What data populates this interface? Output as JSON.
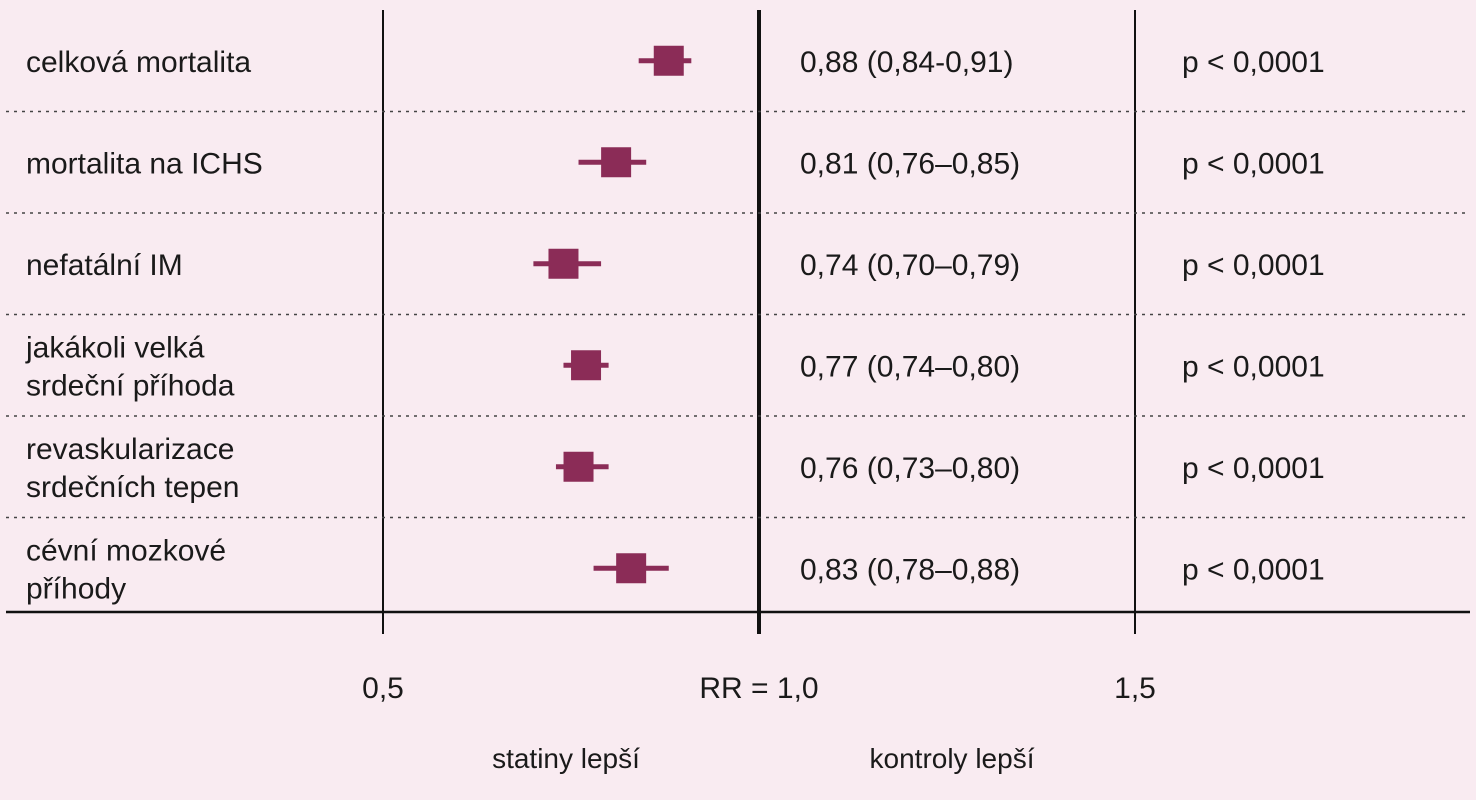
{
  "chart_data": {
    "type": "forest",
    "rows": [
      {
        "label_lines": [
          "celková mortalita"
        ],
        "rr": 0.88,
        "lo": 0.84,
        "hi": 0.91,
        "rr_text": "0,88 (0,84-0,91)",
        "p_text": "p < 0,0001"
      },
      {
        "label_lines": [
          "mortalita na ICHS"
        ],
        "rr": 0.81,
        "lo": 0.76,
        "hi": 0.85,
        "rr_text": "0,81 (0,76–0,85)",
        "p_text": "p < 0,0001"
      },
      {
        "label_lines": [
          "nefatální IM"
        ],
        "rr": 0.74,
        "lo": 0.7,
        "hi": 0.79,
        "rr_text": "0,74 (0,70–0,79)",
        "p_text": "p < 0,0001"
      },
      {
        "label_lines": [
          "jakákoli velká",
          "srdeční příhoda"
        ],
        "rr": 0.77,
        "lo": 0.74,
        "hi": 0.8,
        "rr_text": "0,77 (0,74–0,80)",
        "p_text": "p < 0,0001"
      },
      {
        "label_lines": [
          "revaskularizace",
          "srdečních tepen"
        ],
        "rr": 0.76,
        "lo": 0.73,
        "hi": 0.8,
        "rr_text": "0,76 (0,73–0,80)",
        "p_text": "p < 0,0001"
      },
      {
        "label_lines": [
          "cévní mozkové",
          "příhody"
        ],
        "rr": 0.83,
        "lo": 0.78,
        "hi": 0.88,
        "rr_text": "0,83 (0,78–0,88)",
        "p_text": "p < 0,0001"
      }
    ],
    "x_ticks": [
      {
        "value": 0.5,
        "label": "0,5"
      },
      {
        "value": 1.0,
        "label": "RR = 1,0"
      },
      {
        "value": 1.5,
        "label": "1,5"
      }
    ],
    "direction_labels": {
      "left": "statiny lepší",
      "right": "kontroly lepší"
    },
    "marker_color": "#8b2c57",
    "background_color": "#f9ebf1"
  }
}
